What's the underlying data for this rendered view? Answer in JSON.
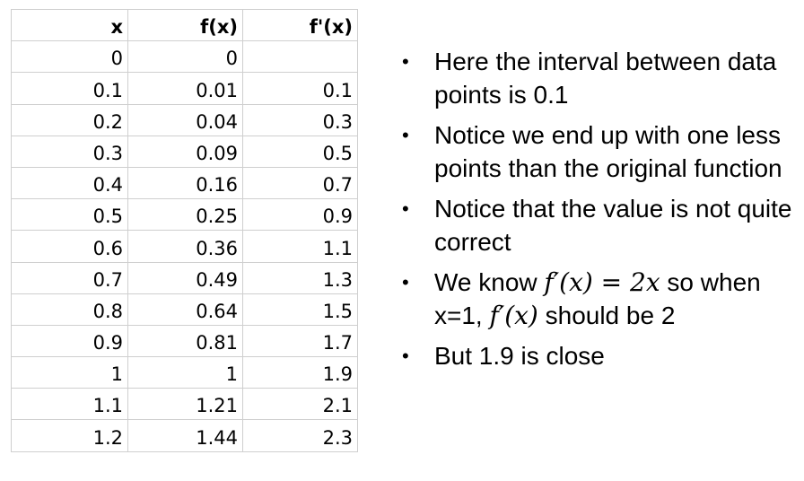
{
  "table": {
    "headers": [
      "x",
      "f(x)",
      "f'(x)"
    ],
    "rows": [
      [
        "0",
        "0",
        ""
      ],
      [
        "0.1",
        "0.01",
        "0.1"
      ],
      [
        "0.2",
        "0.04",
        "0.3"
      ],
      [
        "0.3",
        "0.09",
        "0.5"
      ],
      [
        "0.4",
        "0.16",
        "0.7"
      ],
      [
        "0.5",
        "0.25",
        "0.9"
      ],
      [
        "0.6",
        "0.36",
        "1.1"
      ],
      [
        "0.7",
        "0.49",
        "1.3"
      ],
      [
        "0.8",
        "0.64",
        "1.5"
      ],
      [
        "0.9",
        "0.81",
        "1.7"
      ],
      [
        "1",
        "1",
        "1.9"
      ],
      [
        "1.1",
        "1.21",
        "2.1"
      ],
      [
        "1.2",
        "1.44",
        "2.3"
      ]
    ]
  },
  "bullets": {
    "b1": "Here the interval between data points is 0.1",
    "b2": "Notice we end up with one less points than the original function",
    "b3": "Notice that the value is not quite correct",
    "b4_pre": "We know ",
    "b4_math1": "f′(x) = 2x",
    "b4_mid": " so when x=1, ",
    "b4_math2": "f′(x)",
    "b4_post": " should be 2",
    "b5": "But 1.9 is close"
  }
}
